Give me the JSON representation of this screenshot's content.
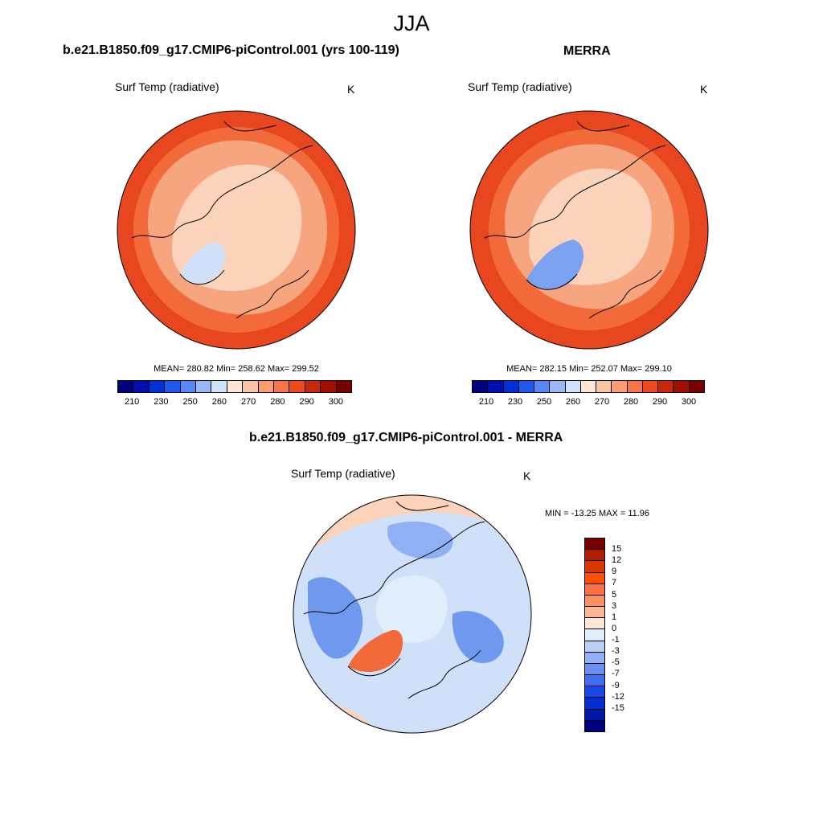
{
  "figure": {
    "title": "JJA"
  },
  "panels": [
    {
      "title": "b.e21.B1850.f09_g17.CMIP6-piControl.001 (yrs 100-119)",
      "variable": "Surf Temp (radiative)",
      "units": "K",
      "stats": "MEAN= 280.82  Min= 258.62  Max= 299.52"
    },
    {
      "title": "MERRA",
      "variable": "Surf Temp (radiative)",
      "units": "K",
      "stats": "MEAN= 282.15  Min= 252.07  Max= 299.10"
    },
    {
      "title": "b.e21.B1850.f09_g17.CMIP6-piControl.001 - MERRA",
      "variable": "Surf Temp (radiative)",
      "units": "K",
      "stats": "MIN = -13.25 MAX =  11.96"
    }
  ],
  "colorbars": {
    "absolute": {
      "colors": [
        "#00007f",
        "#0010b0",
        "#0030d8",
        "#2058f0",
        "#5888f8",
        "#98b8f8",
        "#d0e2fa",
        "#fde6d4",
        "#fcc4a6",
        "#fc9c70",
        "#f87448",
        "#ea4a1e",
        "#c82808",
        "#a01000",
        "#780000"
      ],
      "ticks": [
        "210",
        "230",
        "250",
        "260",
        "270",
        "280",
        "290",
        "300"
      ]
    },
    "difference": {
      "colors": [
        "#780000",
        "#b01c00",
        "#d83800",
        "#fa5000",
        "#fa7040",
        "#fb9060",
        "#fcb890",
        "#fde6d6",
        "#e0edfa",
        "#b8d0f8",
        "#90b0f6",
        "#6890f2",
        "#4070f0",
        "#1848e8",
        "#0030d0",
        "#0018a8",
        "#00007f"
      ],
      "ticks": [
        "15",
        "12",
        "9",
        "7",
        "5",
        "3",
        "1",
        "0",
        "-1",
        "-3",
        "-5",
        "-7",
        "-9",
        "-12",
        "-15"
      ]
    }
  },
  "map_colors": {
    "warm_dark": "#e8461e",
    "warm_mid": "#f26a3a",
    "warm_light": "#f7a57e",
    "arctic": "#fbd3bb",
    "ice": "#cfe0f8",
    "diff_base": "#cfe0f8",
    "diff_blue": "#6f98ef",
    "diff_red": "#f26a3a",
    "diff_peach": "#fbd3bb"
  }
}
